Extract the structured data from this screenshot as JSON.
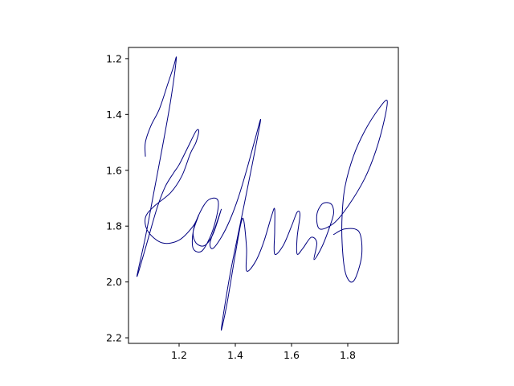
{
  "chart_data": {
    "type": "line",
    "title": "",
    "xlabel": "",
    "ylabel": "",
    "xlim": [
      1.02,
      1.98
    ],
    "ylim": [
      2.22,
      1.16
    ],
    "y_inverted": true,
    "grid": false,
    "x_ticks": [
      "1.2",
      "1.4",
      "1.6",
      "1.8"
    ],
    "x_tick_values": [
      1.2,
      1.4,
      1.6,
      1.8
    ],
    "y_ticks": [
      "1.2",
      "1.4",
      "1.6",
      "1.8",
      "2.0",
      "2.2"
    ],
    "y_tick_values": [
      1.2,
      1.4,
      1.6,
      1.8,
      2.0,
      2.2
    ],
    "series": [
      {
        "color": "#000080",
        "points": [
          [
            1.08,
            1.55
          ],
          [
            1.08,
            1.5
          ],
          [
            1.1,
            1.44
          ],
          [
            1.13,
            1.38
          ],
          [
            1.16,
            1.29
          ],
          [
            1.18,
            1.23
          ],
          [
            1.19,
            1.2
          ],
          [
            1.17,
            1.35
          ],
          [
            1.14,
            1.52
          ],
          [
            1.11,
            1.68
          ],
          [
            1.08,
            1.84
          ],
          [
            1.05,
            1.98
          ],
          [
            1.08,
            1.88
          ],
          [
            1.12,
            1.74
          ],
          [
            1.15,
            1.66
          ],
          [
            1.18,
            1.61
          ],
          [
            1.2,
            1.58
          ],
          [
            1.23,
            1.52
          ],
          [
            1.26,
            1.46
          ],
          [
            1.27,
            1.46
          ],
          [
            1.26,
            1.5
          ],
          [
            1.24,
            1.54
          ],
          [
            1.21,
            1.62
          ],
          [
            1.17,
            1.68
          ],
          [
            1.11,
            1.73
          ],
          [
            1.08,
            1.77
          ],
          [
            1.09,
            1.82
          ],
          [
            1.14,
            1.86
          ],
          [
            1.2,
            1.85
          ],
          [
            1.25,
            1.8
          ],
          [
            1.27,
            1.76
          ],
          [
            1.25,
            1.82
          ],
          [
            1.25,
            1.88
          ],
          [
            1.28,
            1.89
          ],
          [
            1.31,
            1.84
          ],
          [
            1.33,
            1.78
          ],
          [
            1.34,
            1.72
          ],
          [
            1.33,
            1.7
          ],
          [
            1.3,
            1.71
          ],
          [
            1.27,
            1.76
          ],
          [
            1.25,
            1.82
          ],
          [
            1.26,
            1.86
          ],
          [
            1.29,
            1.87
          ],
          [
            1.32,
            1.83
          ],
          [
            1.35,
            1.74
          ],
          [
            1.33,
            1.8
          ],
          [
            1.31,
            1.86
          ],
          [
            1.32,
            1.88
          ],
          [
            1.35,
            1.84
          ],
          [
            1.38,
            1.78
          ],
          [
            1.41,
            1.7
          ],
          [
            1.44,
            1.6
          ],
          [
            1.47,
            1.49
          ],
          [
            1.49,
            1.42
          ],
          [
            1.46,
            1.58
          ],
          [
            1.42,
            1.78
          ],
          [
            1.38,
            1.98
          ],
          [
            1.35,
            2.17
          ],
          [
            1.37,
            2.08
          ],
          [
            1.4,
            1.9
          ],
          [
            1.42,
            1.79
          ],
          [
            1.43,
            1.78
          ],
          [
            1.44,
            1.88
          ],
          [
            1.44,
            1.96
          ],
          [
            1.47,
            1.93
          ],
          [
            1.5,
            1.86
          ],
          [
            1.53,
            1.76
          ],
          [
            1.54,
            1.74
          ],
          [
            1.54,
            1.82
          ],
          [
            1.54,
            1.9
          ],
          [
            1.57,
            1.87
          ],
          [
            1.6,
            1.8
          ],
          [
            1.62,
            1.75
          ],
          [
            1.63,
            1.76
          ],
          [
            1.62,
            1.84
          ],
          [
            1.62,
            1.9
          ],
          [
            1.64,
            1.88
          ],
          [
            1.67,
            1.84
          ],
          [
            1.69,
            1.86
          ],
          [
            1.68,
            1.92
          ],
          [
            1.71,
            1.87
          ],
          [
            1.74,
            1.79
          ],
          [
            1.75,
            1.75
          ],
          [
            1.74,
            1.72
          ],
          [
            1.71,
            1.72
          ],
          [
            1.69,
            1.76
          ],
          [
            1.7,
            1.81
          ],
          [
            1.75,
            1.79
          ],
          [
            1.8,
            1.73
          ],
          [
            1.86,
            1.63
          ],
          [
            1.9,
            1.53
          ],
          [
            1.93,
            1.42
          ],
          [
            1.94,
            1.35
          ],
          [
            1.91,
            1.38
          ],
          [
            1.86,
            1.46
          ],
          [
            1.82,
            1.55
          ],
          [
            1.79,
            1.66
          ],
          [
            1.78,
            1.76
          ],
          [
            1.78,
            1.86
          ],
          [
            1.79,
            1.96
          ],
          [
            1.81,
            2.0
          ],
          [
            1.83,
            1.98
          ],
          [
            1.85,
            1.9
          ],
          [
            1.84,
            1.82
          ],
          [
            1.79,
            1.81
          ],
          [
            1.75,
            1.83
          ]
        ]
      }
    ]
  }
}
